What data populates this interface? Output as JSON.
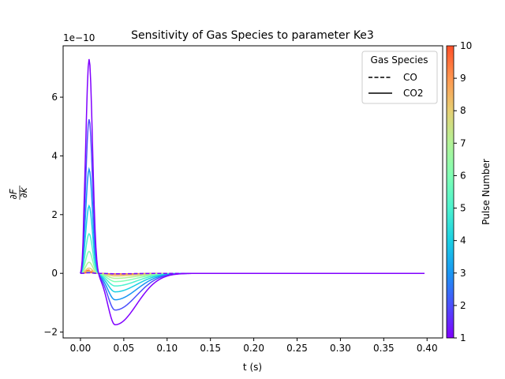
{
  "chart_data": {
    "type": "line",
    "title": "Sensitivity of Gas Species to parameter Ke3",
    "xlabel": "t (s)",
    "ylabel": "∂F/∂k",
    "y_offset_text": "1e−10",
    "xlim": [
      -0.02,
      0.418
    ],
    "ylim": [
      -2.2,
      7.75
    ],
    "x_ticks": [
      0.0,
      0.05,
      0.1,
      0.15,
      0.2,
      0.25,
      0.3,
      0.35,
      0.4
    ],
    "x_tick_labels": [
      "0.00",
      "0.05",
      "0.10",
      "0.15",
      "0.20",
      "0.25",
      "0.30",
      "0.35",
      "0.40"
    ],
    "y_ticks": [
      -2,
      0,
      2,
      4,
      6
    ],
    "y_tick_labels": [
      "−2",
      "0",
      "2",
      "4",
      "6"
    ],
    "colormap": "rainbow",
    "colors": [
      "#8000ff",
      "#4c4ffc",
      "#1996f3",
      "#1acfe3",
      "#4cf2ce",
      "#80ffb4",
      "#b2f296",
      "#e6cf73",
      "#ff964f",
      "#ff4f28"
    ],
    "legend": {
      "title": "Gas Species",
      "placement": "top-right",
      "entries": [
        {
          "label": "CO",
          "style": "dashed"
        },
        {
          "label": "CO2",
          "style": "solid"
        }
      ]
    },
    "colorbar": {
      "label": "Pulse Number",
      "min": 1,
      "max": 10,
      "ticks": [
        "1",
        "2",
        "3",
        "4",
        "5",
        "6",
        "7",
        "8",
        "9",
        "10"
      ]
    },
    "curve_model": {
      "t_end": 0.397,
      "peak_time": 0.01,
      "trough_time": 0.04
    },
    "series": [
      {
        "pulse": 1,
        "species": "CO2",
        "peak": 7.3,
        "trough": -1.75
      },
      {
        "pulse": 2,
        "species": "CO2",
        "peak": 5.25,
        "trough": -1.25
      },
      {
        "pulse": 3,
        "species": "CO2",
        "peak": 3.55,
        "trough": -0.9
      },
      {
        "pulse": 4,
        "species": "CO2",
        "peak": 2.3,
        "trough": -0.63
      },
      {
        "pulse": 5,
        "species": "CO2",
        "peak": 1.35,
        "trough": -0.43
      },
      {
        "pulse": 6,
        "species": "CO2",
        "peak": 0.75,
        "trough": -0.28
      },
      {
        "pulse": 7,
        "species": "CO2",
        "peak": 0.38,
        "trough": -0.17
      },
      {
        "pulse": 8,
        "species": "CO2",
        "peak": 0.18,
        "trough": -0.09
      },
      {
        "pulse": 9,
        "species": "CO2",
        "peak": 0.08,
        "trough": -0.04
      },
      {
        "pulse": 10,
        "species": "CO2",
        "peak": 0.03,
        "trough": -0.02
      },
      {
        "pulse": 1,
        "species": "CO",
        "peak": 0.02,
        "trough": -0.015
      },
      {
        "pulse": 5,
        "species": "CO",
        "peak": 0.04,
        "trough": -0.02
      },
      {
        "pulse": 9,
        "species": "CO",
        "peak": 0.09,
        "trough": -0.03
      },
      {
        "pulse": 10,
        "species": "CO",
        "peak": 0.11,
        "trough": -0.035
      }
    ]
  }
}
